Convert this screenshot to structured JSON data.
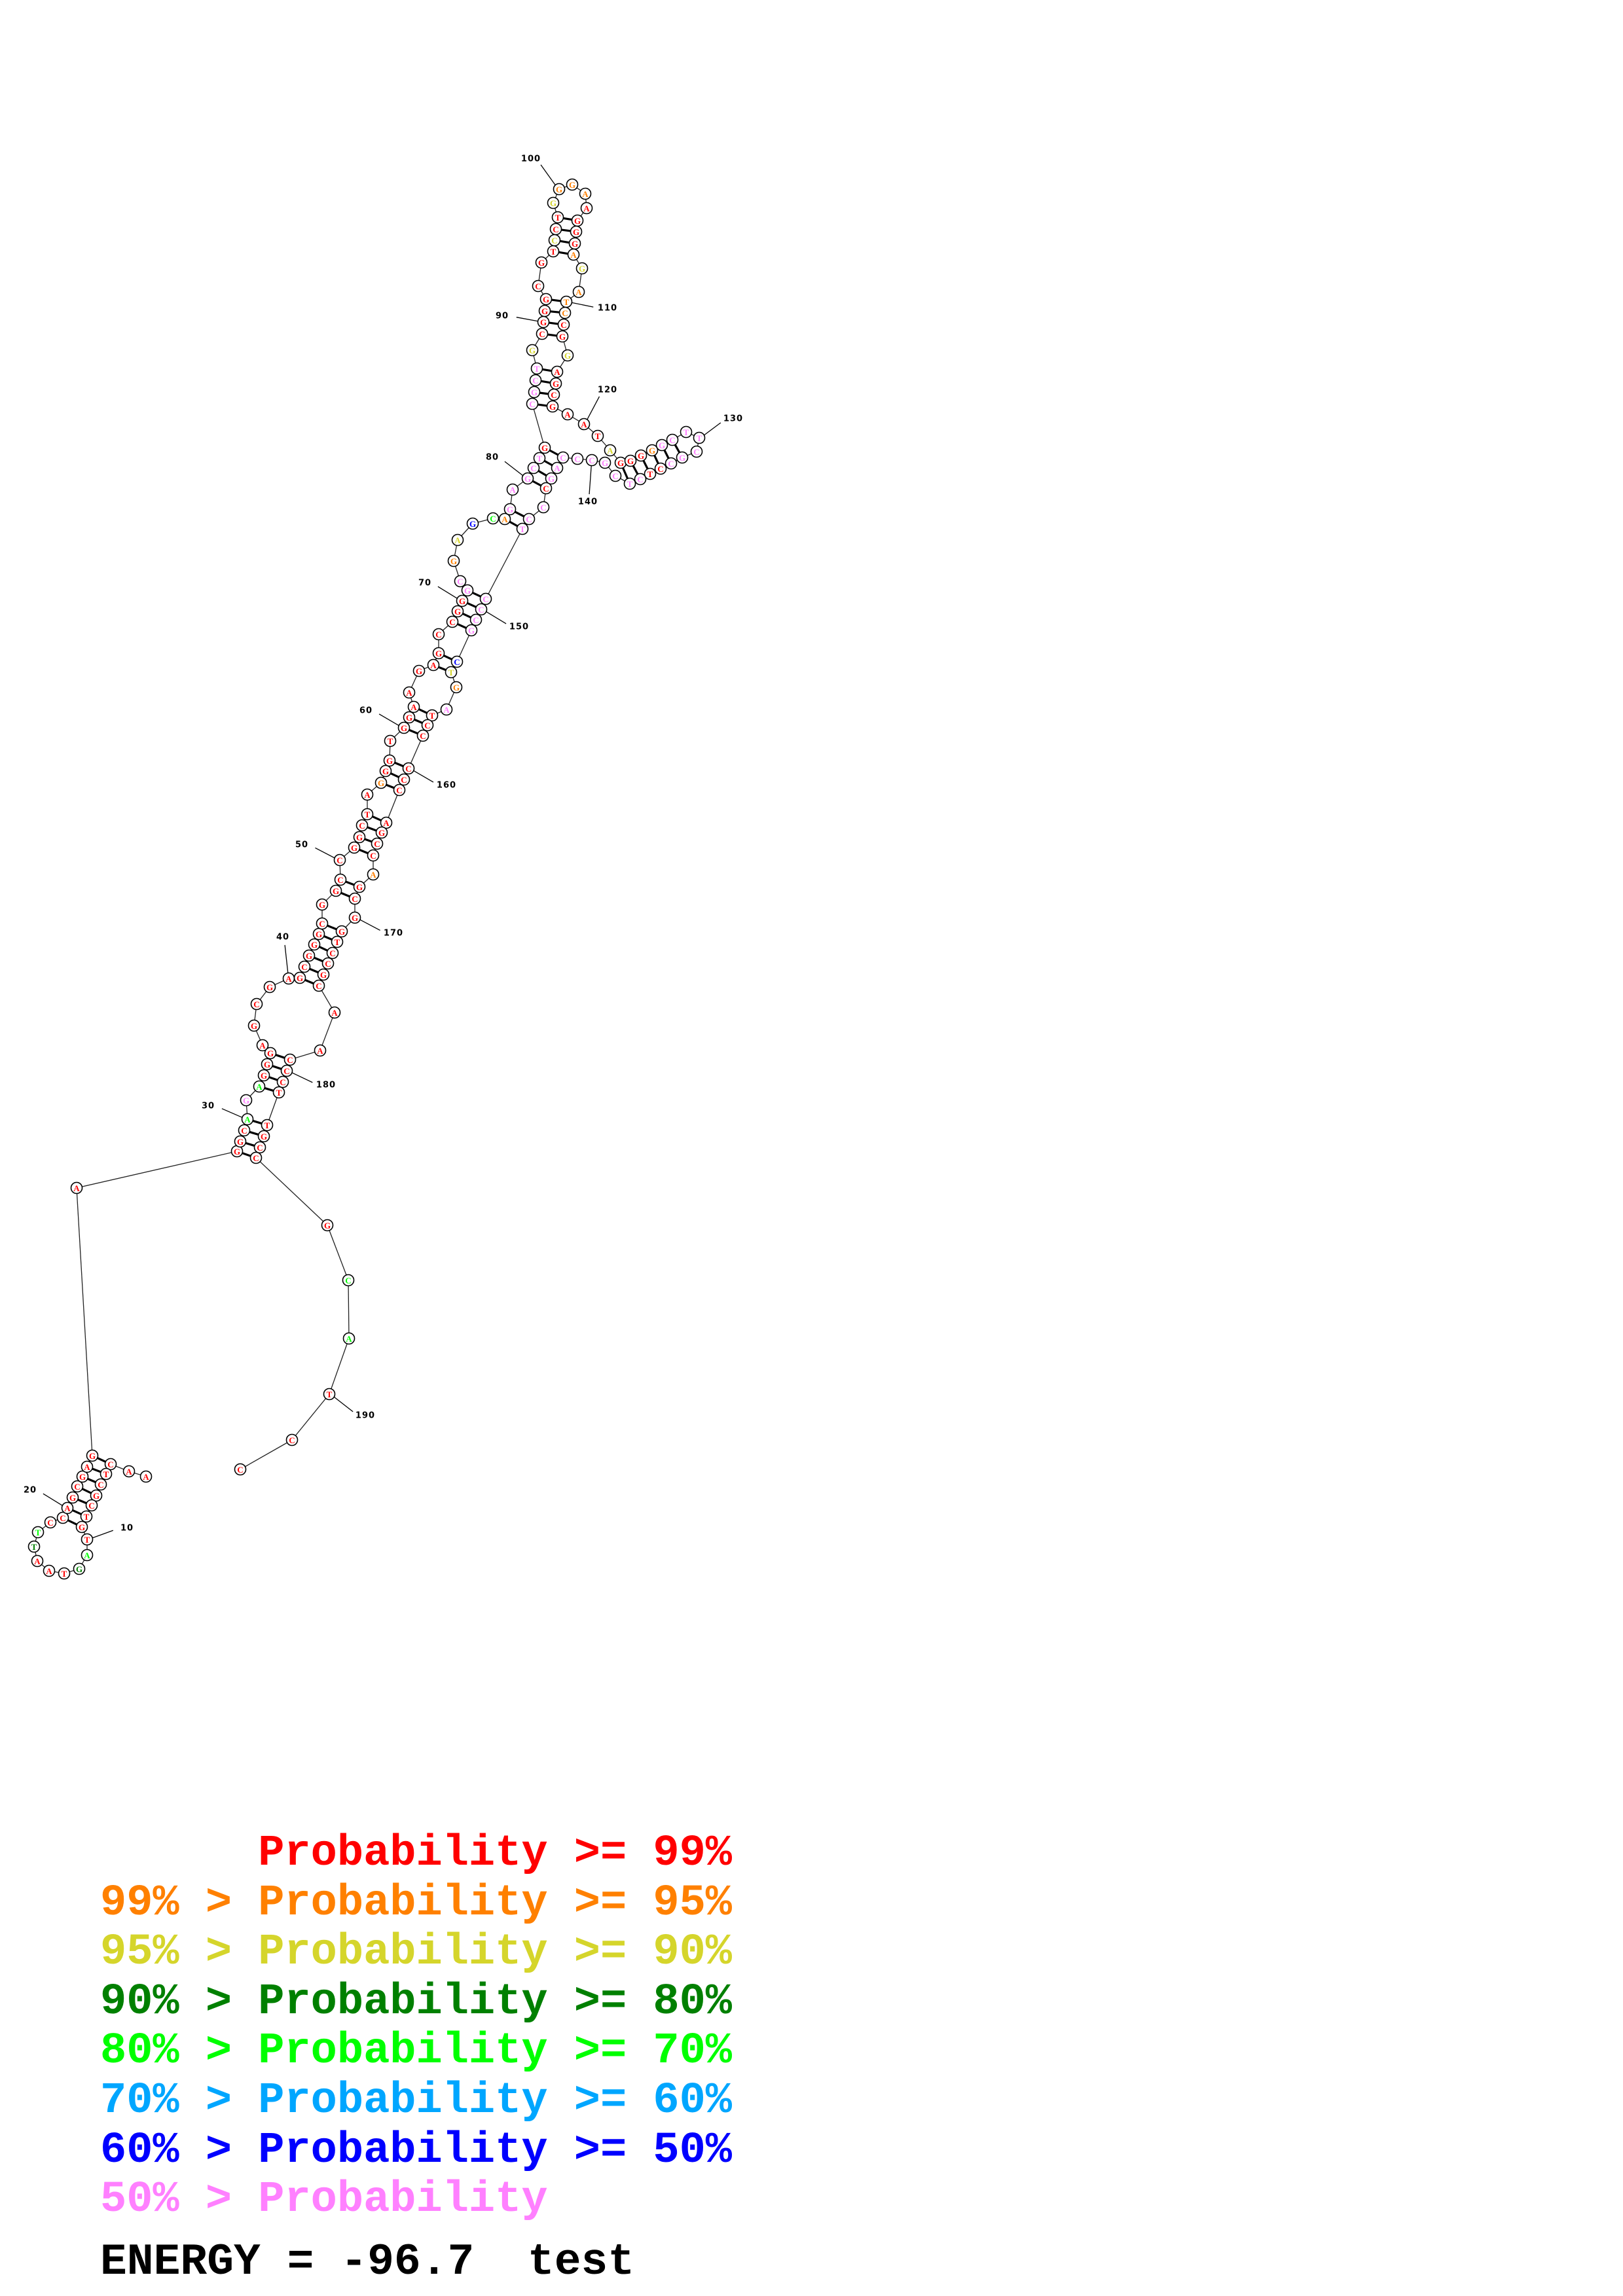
{
  "structure": {
    "sequence": "AACTCGCTGTAGTAATTCCAGCGAGAGGCAGAGGGAGCGAGCGGGCGGCCGGCTAGGGTGGAAGAGCCGGGCGAGCAGAGCTGCGCTGCGGGCGTCCTGGGAAGGGAGATCCGGAGCGAATAGGGGGCTTCGCCTCTCGCCCAGCCCTCCCGCTGATCCCCCAGCCAGCGGTCCGCAACCCTTGCCGCATCC",
    "probability_class": "000000000043000340000000000004740000000000000000000000010000000000000077126417777707777200000002002111000012111002000000020001777777700777777777077777776217000000000010000000000000000000044000000000",
    "pairs": [
      [
        3,
        25
      ],
      [
        4,
        24
      ],
      [
        5,
        23
      ],
      [
        6,
        22
      ],
      [
        7,
        21
      ],
      [
        8,
        20
      ],
      [
        9,
        19
      ],
      [
        27,
        186
      ],
      [
        28,
        185
      ],
      [
        29,
        184
      ],
      [
        30,
        183
      ],
      [
        32,
        182
      ],
      [
        33,
        181
      ],
      [
        34,
        180
      ],
      [
        35,
        179
      ],
      [
        41,
        176
      ],
      [
        42,
        175
      ],
      [
        43,
        174
      ],
      [
        44,
        173
      ],
      [
        45,
        172
      ],
      [
        46,
        171
      ],
      [
        48,
        169
      ],
      [
        49,
        168
      ],
      [
        51,
        166
      ],
      [
        52,
        165
      ],
      [
        53,
        164
      ],
      [
        54,
        163
      ],
      [
        56,
        162
      ],
      [
        57,
        161
      ],
      [
        58,
        160
      ],
      [
        60,
        159
      ],
      [
        61,
        158
      ],
      [
        62,
        157
      ],
      [
        65,
        154
      ],
      [
        66,
        153
      ],
      [
        68,
        152
      ],
      [
        69,
        151
      ],
      [
        70,
        150
      ],
      [
        71,
        149
      ],
      [
        77,
        148
      ],
      [
        78,
        147
      ],
      [
        80,
        145
      ],
      [
        81,
        144
      ],
      [
        82,
        143
      ],
      [
        83,
        142
      ],
      [
        84,
        118
      ],
      [
        85,
        117
      ],
      [
        86,
        116
      ],
      [
        87,
        115
      ],
      [
        89,
        113
      ],
      [
        90,
        112
      ],
      [
        91,
        111
      ],
      [
        92,
        110
      ],
      [
        95,
        107
      ],
      [
        96,
        106
      ],
      [
        97,
        105
      ],
      [
        98,
        104
      ],
      [
        123,
        137
      ],
      [
        124,
        136
      ],
      [
        125,
        135
      ],
      [
        126,
        134
      ],
      [
        127,
        133
      ],
      [
        128,
        132
      ]
    ],
    "position_labels": [
      "10",
      "20",
      "30",
      "40",
      "50",
      "60",
      "70",
      "80",
      "90",
      "100",
      "110",
      "120",
      "130",
      "140",
      "150",
      "160",
      "170",
      "180",
      "190"
    ]
  },
  "legend": [
    {
      "lower": "",
      "op1": "",
      "word": "Probability",
      "op2": ">=",
      "upper": "99%",
      "color": "#ff0000"
    },
    {
      "lower": "99%",
      "op1": ">",
      "word": "Probability",
      "op2": ">=",
      "upper": "95%",
      "color": "#ff8000"
    },
    {
      "lower": "95%",
      "op1": ">",
      "word": "Probability",
      "op2": ">=",
      "upper": "90%",
      "color": "#d5d52b"
    },
    {
      "lower": "90%",
      "op1": ">",
      "word": "Probability",
      "op2": ">=",
      "upper": "80%",
      "color": "#008000"
    },
    {
      "lower": "80%",
      "op1": ">",
      "word": "Probability",
      "op2": ">=",
      "upper": "70%",
      "color": "#00ff00"
    },
    {
      "lower": "70%",
      "op1": ">",
      "word": "Probability",
      "op2": ">=",
      "upper": "60%",
      "color": "#00a6ff"
    },
    {
      "lower": "60%",
      "op1": ">",
      "word": "Probability",
      "op2": ">=",
      "upper": "50%",
      "color": "#0000ff"
    },
    {
      "lower": "50%",
      "op1": ">",
      "word": "Probability",
      "op2": "",
      "upper": "",
      "color": "#ff80ff"
    }
  ],
  "footer": {
    "energy_label": "ENERGY = -96.7",
    "name": "test"
  }
}
